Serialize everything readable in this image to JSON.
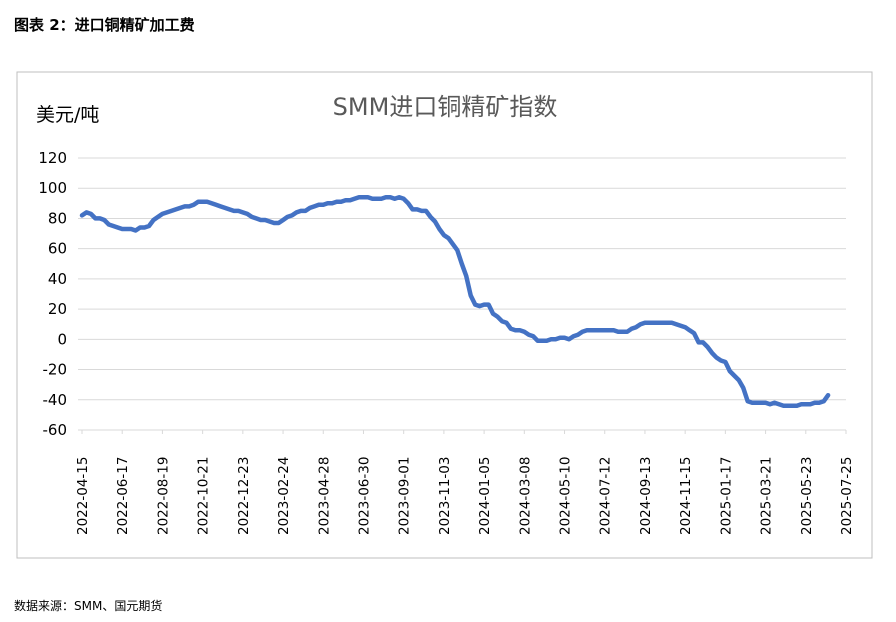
{
  "figure_title": "图表 2：进口铜精矿加工费",
  "source": "数据来源：SMM、国元期货",
  "colors": {
    "line": "#4472C4",
    "grid": "#D9D9D9",
    "frame": "#BFBFBF"
  },
  "chart_data": {
    "type": "line",
    "title": "SMM进口铜精矿指数",
    "ylabel": "美元/吨",
    "xlabel": "",
    "ylim": [
      -60,
      120
    ],
    "yticks": [
      120,
      100,
      80,
      60,
      40,
      20,
      0,
      -20,
      -40,
      -60
    ],
    "grid": true,
    "categories": [
      "2022-04-15",
      "2022-06-17",
      "2022-08-19",
      "2022-10-21",
      "2022-12-23",
      "2023-02-24",
      "2023-04-28",
      "2023-06-30",
      "2023-09-01",
      "2023-11-03",
      "2024-01-05",
      "2024-03-08",
      "2024-05-10",
      "2024-07-12",
      "2024-09-13",
      "2024-11-15",
      "2025-01-17",
      "2025-03-21",
      "2025-05-23",
      "2025-07-25"
    ],
    "series": [
      {
        "name": "",
        "color": "#4472C4",
        "points": [
          [
            "2022-04-15",
            82
          ],
          [
            "2022-04-22",
            84
          ],
          [
            "2022-04-29",
            83
          ],
          [
            "2022-05-06",
            80
          ],
          [
            "2022-05-13",
            80
          ],
          [
            "2022-05-20",
            79
          ],
          [
            "2022-05-27",
            76
          ],
          [
            "2022-06-03",
            75
          ],
          [
            "2022-06-10",
            74
          ],
          [
            "2022-06-17",
            73
          ],
          [
            "2022-06-24",
            73
          ],
          [
            "2022-07-01",
            73
          ],
          [
            "2022-07-08",
            72
          ],
          [
            "2022-07-15",
            74
          ],
          [
            "2022-07-22",
            74
          ],
          [
            "2022-07-29",
            75
          ],
          [
            "2022-08-05",
            79
          ],
          [
            "2022-08-12",
            81
          ],
          [
            "2022-08-19",
            83
          ],
          [
            "2022-08-26",
            84
          ],
          [
            "2022-09-02",
            85
          ],
          [
            "2022-09-09",
            86
          ],
          [
            "2022-09-16",
            87
          ],
          [
            "2022-09-23",
            88
          ],
          [
            "2022-09-30",
            88
          ],
          [
            "2022-10-07",
            89
          ],
          [
            "2022-10-14",
            91
          ],
          [
            "2022-10-21",
            91
          ],
          [
            "2022-10-28",
            91
          ],
          [
            "2022-11-04",
            90
          ],
          [
            "2022-11-11",
            89
          ],
          [
            "2022-11-18",
            88
          ],
          [
            "2022-11-25",
            87
          ],
          [
            "2022-12-02",
            86
          ],
          [
            "2022-12-09",
            85
          ],
          [
            "2022-12-16",
            85
          ],
          [
            "2022-12-23",
            84
          ],
          [
            "2022-12-30",
            83
          ],
          [
            "2023-01-06",
            81
          ],
          [
            "2023-01-13",
            80
          ],
          [
            "2023-01-20",
            79
          ],
          [
            "2023-01-27",
            79
          ],
          [
            "2023-02-03",
            78
          ],
          [
            "2023-02-10",
            77
          ],
          [
            "2023-02-17",
            77
          ],
          [
            "2023-02-24",
            79
          ],
          [
            "2023-03-03",
            81
          ],
          [
            "2023-03-10",
            82
          ],
          [
            "2023-03-17",
            84
          ],
          [
            "2023-03-24",
            85
          ],
          [
            "2023-03-31",
            85
          ],
          [
            "2023-04-07",
            87
          ],
          [
            "2023-04-14",
            88
          ],
          [
            "2023-04-21",
            89
          ],
          [
            "2023-04-28",
            89
          ],
          [
            "2023-05-05",
            90
          ],
          [
            "2023-05-12",
            90
          ],
          [
            "2023-05-19",
            91
          ],
          [
            "2023-05-26",
            91
          ],
          [
            "2023-06-02",
            92
          ],
          [
            "2023-06-09",
            92
          ],
          [
            "2023-06-16",
            93
          ],
          [
            "2023-06-23",
            94
          ],
          [
            "2023-06-30",
            94
          ],
          [
            "2023-07-07",
            94
          ],
          [
            "2023-07-14",
            93
          ],
          [
            "2023-07-21",
            93
          ],
          [
            "2023-07-28",
            93
          ],
          [
            "2023-08-04",
            94
          ],
          [
            "2023-08-11",
            94
          ],
          [
            "2023-08-18",
            93
          ],
          [
            "2023-08-25",
            94
          ],
          [
            "2023-09-01",
            93
          ],
          [
            "2023-09-08",
            90
          ],
          [
            "2023-09-15",
            86
          ],
          [
            "2023-09-22",
            86
          ],
          [
            "2023-09-29",
            85
          ],
          [
            "2023-10-06",
            85
          ],
          [
            "2023-10-13",
            81
          ],
          [
            "2023-10-20",
            78
          ],
          [
            "2023-10-27",
            73
          ],
          [
            "2023-11-03",
            69
          ],
          [
            "2023-11-10",
            67
          ],
          [
            "2023-11-17",
            63
          ],
          [
            "2023-11-24",
            59
          ],
          [
            "2023-12-01",
            50
          ],
          [
            "2023-12-08",
            42
          ],
          [
            "2023-12-15",
            29
          ],
          [
            "2023-12-22",
            23
          ],
          [
            "2023-12-29",
            22
          ],
          [
            "2024-01-05",
            23
          ],
          [
            "2024-01-12",
            23
          ],
          [
            "2024-01-19",
            17
          ],
          [
            "2024-01-26",
            15
          ],
          [
            "2024-02-02",
            12
          ],
          [
            "2024-02-09",
            11
          ],
          [
            "2024-02-16",
            7
          ],
          [
            "2024-02-23",
            6
          ],
          [
            "2024-03-01",
            6
          ],
          [
            "2024-03-08",
            5
          ],
          [
            "2024-03-15",
            3
          ],
          [
            "2024-03-22",
            2
          ],
          [
            "2024-03-29",
            -1
          ],
          [
            "2024-04-05",
            -1
          ],
          [
            "2024-04-12",
            -1
          ],
          [
            "2024-04-19",
            0
          ],
          [
            "2024-04-26",
            0
          ],
          [
            "2024-05-03",
            1
          ],
          [
            "2024-05-10",
            1
          ],
          [
            "2024-05-17",
            0
          ],
          [
            "2024-05-24",
            2
          ],
          [
            "2024-05-31",
            3
          ],
          [
            "2024-06-07",
            5
          ],
          [
            "2024-06-14",
            6
          ],
          [
            "2024-06-21",
            6
          ],
          [
            "2024-06-28",
            6
          ],
          [
            "2024-07-05",
            6
          ],
          [
            "2024-07-12",
            6
          ],
          [
            "2024-07-19",
            6
          ],
          [
            "2024-07-26",
            6
          ],
          [
            "2024-08-02",
            5
          ],
          [
            "2024-08-09",
            5
          ],
          [
            "2024-08-16",
            5
          ],
          [
            "2024-08-23",
            7
          ],
          [
            "2024-08-30",
            8
          ],
          [
            "2024-09-06",
            10
          ],
          [
            "2024-09-13",
            11
          ],
          [
            "2024-09-20",
            11
          ],
          [
            "2024-09-27",
            11
          ],
          [
            "2024-10-04",
            11
          ],
          [
            "2024-10-11",
            11
          ],
          [
            "2024-10-18",
            11
          ],
          [
            "2024-10-25",
            11
          ],
          [
            "2024-11-01",
            10
          ],
          [
            "2024-11-08",
            9
          ],
          [
            "2024-11-15",
            8
          ],
          [
            "2024-11-22",
            6
          ],
          [
            "2024-11-29",
            4
          ],
          [
            "2024-12-06",
            -2
          ],
          [
            "2024-12-13",
            -2
          ],
          [
            "2024-12-20",
            -5
          ],
          [
            "2024-12-27",
            -9
          ],
          [
            "2025-01-03",
            -12
          ],
          [
            "2025-01-10",
            -14
          ],
          [
            "2025-01-17",
            -15
          ],
          [
            "2025-01-24",
            -21
          ],
          [
            "2025-01-31",
            -24
          ],
          [
            "2025-02-07",
            -27
          ],
          [
            "2025-02-14",
            -32
          ],
          [
            "2025-02-21",
            -41
          ],
          [
            "2025-02-28",
            -42
          ],
          [
            "2025-03-07",
            -42
          ],
          [
            "2025-03-14",
            -42
          ],
          [
            "2025-03-21",
            -42
          ],
          [
            "2025-03-28",
            -43
          ],
          [
            "2025-04-04",
            -42
          ],
          [
            "2025-04-11",
            -43
          ],
          [
            "2025-04-18",
            -44
          ],
          [
            "2025-04-25",
            -44
          ],
          [
            "2025-05-02",
            -44
          ],
          [
            "2025-05-09",
            -44
          ],
          [
            "2025-05-16",
            -43
          ],
          [
            "2025-05-23",
            -43
          ],
          [
            "2025-05-30",
            -43
          ],
          [
            "2025-06-06",
            -42
          ],
          [
            "2025-06-13",
            -42
          ],
          [
            "2025-06-20",
            -41
          ],
          [
            "2025-06-27",
            -37
          ]
        ]
      }
    ]
  }
}
